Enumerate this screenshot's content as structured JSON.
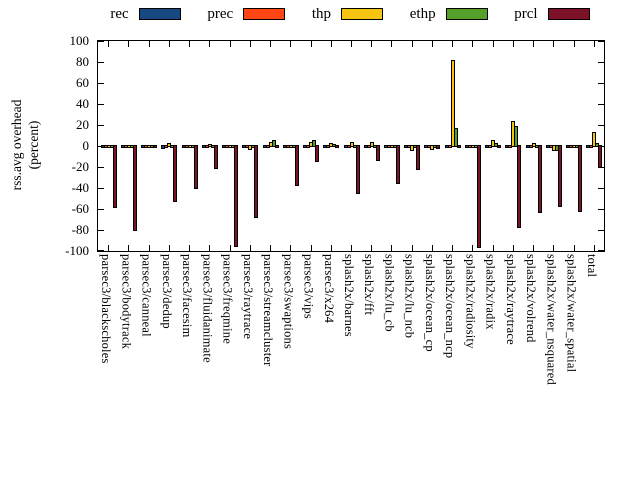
{
  "chart_data": {
    "type": "bar",
    "title": "",
    "ylabel": "rss.avg overhead (percent)",
    "ylabel_lines": [
      "rss.avg overhead",
      "(percent)"
    ],
    "ylim": [
      -100,
      100
    ],
    "ytick_step": 20,
    "yticks": [
      100,
      80,
      60,
      40,
      20,
      0,
      -20,
      -40,
      -60,
      -80,
      -100
    ],
    "grid": false,
    "legend_position": "top-center",
    "bar_outline_color": "#000000",
    "categories": [
      "parsec3/blackscholes",
      "parsec3/bodytrack",
      "parsec3/canneal",
      "parsec3/dedup",
      "parsec3/facesim",
      "parsec3/fluidanimate",
      "parsec3/freqmine",
      "parsec3/raytrace",
      "parsec3/streamcluster",
      "parsec3/swaptions",
      "parsec3/vips",
      "parsec3/x264",
      "splash2x/barnes",
      "splash2x/fft",
      "splash2x/lu_cb",
      "splash2x/lu_ncb",
      "splash2x/ocean_cp",
      "splash2x/ocean_ncp",
      "splash2x/radiosity",
      "splash2x/radix",
      "splash2x/raytrace",
      "splash2x/volrend",
      "splash2x/water_nsquared",
      "splash2x/water_spatial",
      "total"
    ],
    "series": [
      {
        "name": "rec",
        "color": "#16497f",
        "values": [
          -2,
          -2,
          -1,
          -3,
          -1,
          -1,
          -2,
          -1,
          -1,
          -1,
          -1,
          -1,
          -1,
          -1,
          -1,
          -1,
          -1,
          -1,
          -1,
          -1,
          -1,
          -1,
          -1,
          -1,
          -1
        ]
      },
      {
        "name": "prec",
        "color": "#ff4513",
        "values": [
          -2,
          -2,
          -1,
          -1,
          -1,
          -1,
          -2,
          -1,
          -1,
          -1,
          -1,
          -1,
          -1,
          -1,
          -1,
          -1,
          -1,
          -1,
          -1,
          -1,
          -1,
          -1,
          -1,
          -1,
          -1
        ]
      },
      {
        "name": "thp",
        "color": "#f5c511",
        "values": [
          -2,
          -2,
          -2,
          3,
          -2,
          2,
          -2,
          -4,
          4,
          -1,
          4,
          3,
          4,
          4,
          -1,
          -5,
          -4,
          82,
          -1,
          6,
          24,
          3,
          -5,
          -2,
          13
        ]
      },
      {
        "name": "ethp",
        "color": "#55a02a",
        "values": [
          -2,
          -2,
          -1,
          -1,
          -1,
          -1,
          -2,
          -2,
          6,
          -1,
          6,
          1,
          -1,
          -1,
          -1,
          -1,
          -2,
          17,
          -1,
          3,
          19,
          -1,
          -5,
          -2,
          3
        ]
      },
      {
        "name": "prcl",
        "color": "#7c1128",
        "values": [
          -59,
          -81,
          -2,
          -53,
          -41,
          -22,
          -96,
          -69,
          -2,
          -38,
          -15,
          -1,
          -46,
          -14,
          -36,
          -23,
          -3,
          -2,
          -97,
          -1,
          -78,
          -64,
          -58,
          -63,
          -21
        ]
      }
    ]
  }
}
